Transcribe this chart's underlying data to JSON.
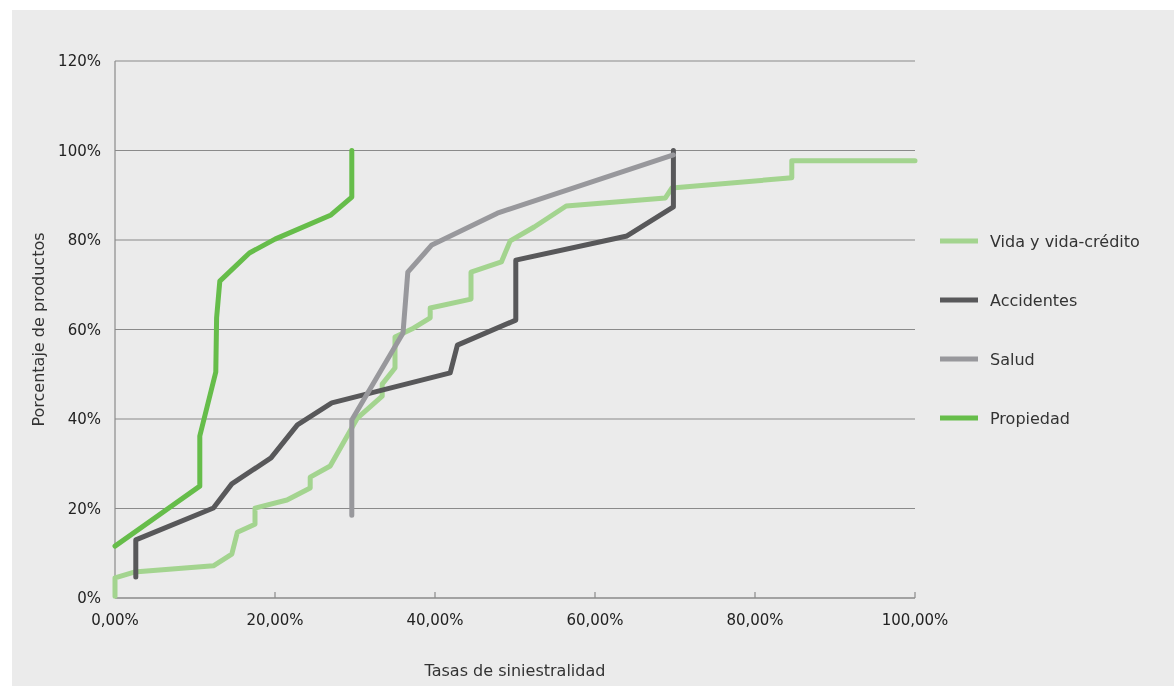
{
  "chart_data": {
    "type": "line",
    "xlabel": "Tasas de siniestralidad",
    "ylabel": "Porcentaje de productos",
    "xlim": [
      0,
      100
    ],
    "ylim": [
      0,
      120
    ],
    "xticks": [
      {
        "value": 0,
        "label": "0,00%"
      },
      {
        "value": 20,
        "label": "20,00%"
      },
      {
        "value": 40,
        "label": "40,00%"
      },
      {
        "value": 60,
        "label": "60,00%"
      },
      {
        "value": 80,
        "label": "80,00%"
      },
      {
        "value": 100,
        "label": "100,00%"
      }
    ],
    "yticks": [
      {
        "value": 0,
        "label": "0%"
      },
      {
        "value": 20,
        "label": "20%"
      },
      {
        "value": 40,
        "label": "40%"
      },
      {
        "value": 60,
        "label": "60%"
      },
      {
        "value": 80,
        "label": "80%"
      },
      {
        "value": 100,
        "label": "100%"
      },
      {
        "value": 120,
        "label": "120%"
      }
    ],
    "grid": "y",
    "legend": "right",
    "marker": "none",
    "line_style": "solid",
    "series": [
      {
        "name": "Vida y vida-crédito",
        "color": "#a3d48f",
        "x": [
          0,
          0,
          2.4,
          12.3,
          14.6,
          15.3,
          17.5,
          17.5,
          21.5,
          24.4,
          24.4,
          26.9,
          30.3,
          33.4,
          33.4,
          35,
          35,
          37.1,
          39.4,
          39.4,
          44.5,
          44.5,
          48.3,
          49.4,
          52.4,
          56.4,
          68.8,
          69.6,
          84.6,
          84.6,
          100
        ],
        "values": [
          0.4,
          4.5,
          5.8,
          7.2,
          9.8,
          14.7,
          16.5,
          20.1,
          21.9,
          24.6,
          27,
          29.5,
          40.2,
          45.1,
          47.8,
          51.4,
          58.3,
          60.1,
          62.6,
          64.8,
          66.8,
          72.8,
          75.1,
          79.8,
          82.9,
          87.6,
          89.4,
          91.6,
          93.9,
          97.7,
          97.7
        ]
      },
      {
        "name": "Accidentes",
        "color": "#58585a",
        "x": [
          2.6,
          2.6,
          12.3,
          14.6,
          19.5,
          22.8,
          27.1,
          41.9,
          42.8,
          50.1,
          50.1,
          64,
          69.8,
          69.8
        ],
        "values": [
          4.7,
          13,
          20.1,
          25.5,
          31.3,
          38.7,
          43.6,
          50.3,
          56.5,
          62.1,
          75.5,
          80.9,
          87.4,
          100
        ]
      },
      {
        "name": "Salud",
        "color": "#98989c",
        "x": [
          29.6,
          29.6,
          36,
          36.6,
          39.6,
          47.8,
          69.8
        ],
        "values": [
          18.5,
          39.8,
          59.2,
          72.8,
          78.9,
          86,
          99
        ]
      },
      {
        "name": "Propiedad",
        "color": "#66bd4a",
        "x": [
          0,
          10.6,
          10.6,
          12.6,
          12.7,
          13.1,
          16.8,
          20,
          27,
          29.6,
          29.6
        ],
        "values": [
          11.6,
          25,
          36.2,
          50.5,
          62.6,
          70.8,
          77.1,
          80.2,
          85.6,
          89.6,
          100
        ]
      }
    ]
  }
}
